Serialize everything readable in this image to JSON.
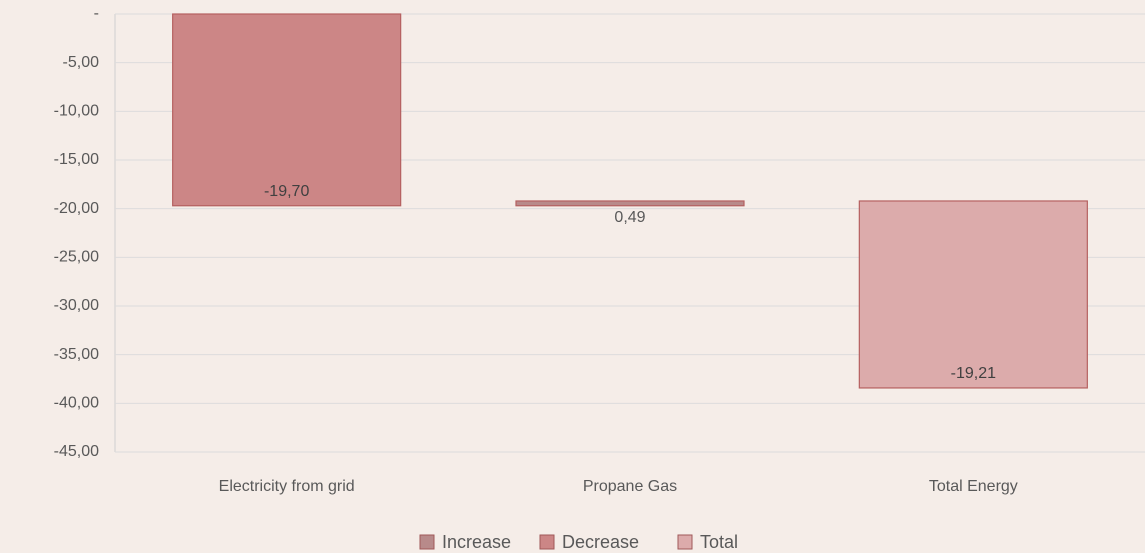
{
  "chart_data": {
    "type": "waterfall",
    "categories": [
      "Electricity from grid",
      "Propane Gas",
      "Total Energy"
    ],
    "series": [
      {
        "name": "Increase",
        "color": "#b88a8a",
        "values": [
          null,
          0.49,
          null
        ],
        "value_labels": [
          null,
          "0,49",
          null
        ]
      },
      {
        "name": "Decrease",
        "color": "#cc8686",
        "values": [
          -19.7,
          null,
          null
        ],
        "value_labels": [
          "-19,70",
          null,
          null
        ]
      },
      {
        "name": "Total",
        "color": "#dcabab",
        "values": [
          null,
          null,
          -19.21
        ],
        "value_labels": [
          null,
          null,
          "-19,21"
        ]
      }
    ],
    "ylim": [
      -45,
      0
    ],
    "yticks": [
      {
        "value": 0,
        "label": "-"
      },
      {
        "value": -5,
        "label": "-5,00"
      },
      {
        "value": -10,
        "label": "-10,00"
      },
      {
        "value": -15,
        "label": "-15,00"
      },
      {
        "value": -20,
        "label": "-20,00"
      },
      {
        "value": -25,
        "label": "-25,00"
      },
      {
        "value": -30,
        "label": "-30,00"
      },
      {
        "value": -35,
        "label": "-35,00"
      },
      {
        "value": -40,
        "label": "-40,00"
      },
      {
        "value": -45,
        "label": "-45,00"
      }
    ],
    "grid": true,
    "legend": "bottom"
  }
}
